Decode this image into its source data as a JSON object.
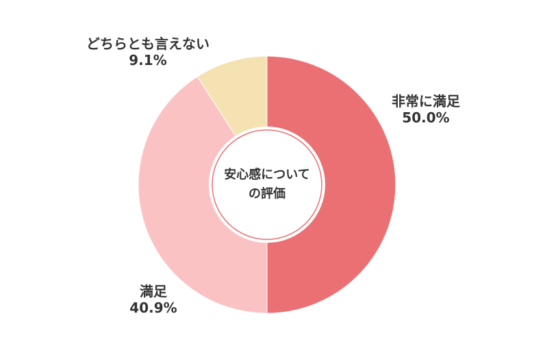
{
  "chart_data": {
    "type": "pie",
    "center_text": [
      "安心感について",
      "の評価"
    ],
    "slices": [
      {
        "label": "非常に満足",
        "value": 50.0,
        "display": "50.0%",
        "color": "#EB7073"
      },
      {
        "label": "満足",
        "value": 40.9,
        "display": "40.9%",
        "color": "#FBC2C4"
      },
      {
        "label": "どちらとも言えない",
        "value": 9.1,
        "display": "9.1%",
        "color": "#F5E2B3"
      }
    ]
  }
}
